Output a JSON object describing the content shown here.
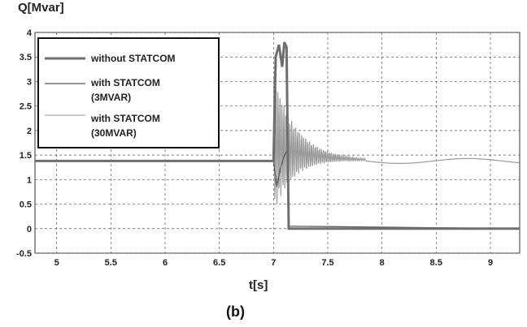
{
  "chart_data": {
    "type": "line",
    "ylabel": "Q[Mvar]",
    "xlabel": "t[s]",
    "caption": "(b)",
    "xlim": [
      4.8,
      9.27
    ],
    "ylim": [
      -0.5,
      4
    ],
    "x_ticks": [
      "5",
      "5.5",
      "6",
      "6.5",
      "7",
      "7.5",
      "8",
      "8.5",
      "9"
    ],
    "y_ticks": [
      "4",
      "3.5",
      "3",
      "2.5",
      "2",
      "1.5",
      "1",
      "0.5",
      "0",
      "-0.5"
    ],
    "grid": true,
    "legend_position": "top-left",
    "series": [
      {
        "name": "without STATCOM",
        "color": "#6e6e6e",
        "points": [
          [
            4.8,
            1.38
          ],
          [
            7.0,
            1.38
          ],
          [
            7.02,
            3.5
          ],
          [
            7.05,
            3.75
          ],
          [
            7.08,
            3.3
          ],
          [
            7.1,
            3.8
          ],
          [
            7.12,
            3.7
          ],
          [
            7.14,
            0.0
          ],
          [
            9.27,
            0.0
          ]
        ]
      },
      {
        "name": "with STATCOM (3MVAR)",
        "color": "#555555",
        "points": [
          [
            4.8,
            1.38
          ],
          [
            7.0,
            1.38
          ],
          [
            7.03,
            0.85
          ],
          [
            7.06,
            1.2
          ],
          [
            7.1,
            1.5
          ],
          [
            7.13,
            1.6
          ],
          [
            7.14,
            0.05
          ],
          [
            9.27,
            0.0
          ]
        ]
      },
      {
        "name": "with STATCOM (30MVAR)",
        "color": "#9a9a9a",
        "points": [
          [
            4.8,
            1.38
          ],
          [
            7.0,
            1.38
          ],
          [
            7.1,
            2.6
          ],
          [
            7.3,
            2.0
          ],
          [
            7.5,
            1.7
          ],
          [
            7.65,
            1.52
          ],
          [
            7.8,
            1.4
          ],
          [
            8.0,
            1.3
          ],
          [
            8.3,
            1.35
          ],
          [
            8.6,
            1.32
          ],
          [
            9.0,
            1.36
          ],
          [
            9.27,
            1.38
          ]
        ]
      }
    ]
  }
}
